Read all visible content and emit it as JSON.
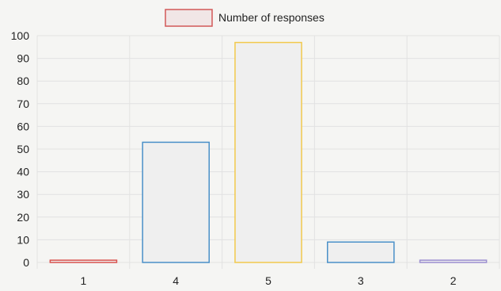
{
  "chart_data": {
    "type": "bar",
    "categories": [
      "1",
      "4",
      "5",
      "3",
      "2"
    ],
    "series": [
      {
        "name": "Number of responses",
        "values": [
          1,
          53,
          97,
          9,
          1
        ]
      }
    ],
    "bar_colors": [
      "#d9534f",
      "#4a90c8",
      "#f2c94c",
      "#4a90c8",
      "#9b8fd0"
    ],
    "legend_fill": "#f1e6e6",
    "legend_border": "#d25858",
    "grid_color": "#e2e2e2",
    "bar_fill": "#efefef",
    "ylim": [
      0,
      100
    ],
    "yticks": [
      0,
      10,
      20,
      30,
      40,
      50,
      60,
      70,
      80,
      90,
      100
    ],
    "grid": true,
    "legend": "top-center",
    "title": "",
    "xlabel": "",
    "ylabel": ""
  }
}
